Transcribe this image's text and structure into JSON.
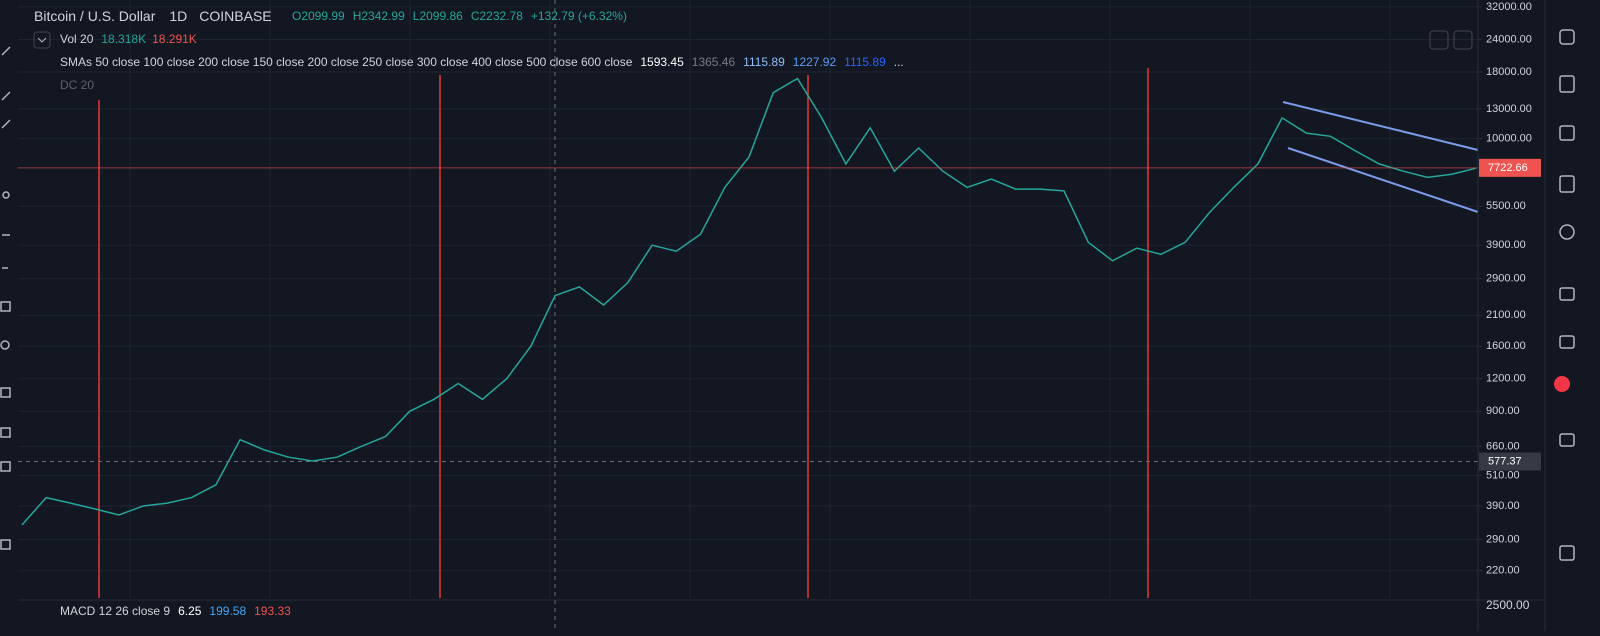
{
  "chart_data": {
    "type": "line",
    "title": "Bitcoin / U.S. Dollar",
    "interval": "1D",
    "exchange": "COINBASE",
    "ohlc": [
      "O2099.99",
      "H2342.99",
      "L2099.86",
      "C2232.78",
      "+132.79 (+6.32%)"
    ],
    "volume_indicator": {
      "label": "Vol 20",
      "values": [
        "18.318K",
        "18.291K"
      ]
    },
    "sma_indicator": {
      "label": "SMAs 50 close 100 close 200 close 150 close 200 close 250 close 300 close 400 close 500 close 600 close",
      "values": [
        "1593.45",
        "1365.46",
        "1115.89",
        "1227.92",
        "1115.89"
      ],
      "more": "..."
    },
    "dc_indicator": "DC 20",
    "macd_indicator": {
      "label": "MACD 12 26 close 9",
      "values": [
        "6.25",
        "199.58",
        "193.33"
      ],
      "axis_label": "2500.00"
    },
    "color": "#26a69a",
    "log_scale": true,
    "grid": true,
    "values": [
      330,
      420,
      400,
      380,
      360,
      390,
      400,
      420,
      470,
      700,
      640,
      600,
      580,
      600,
      660,
      720,
      900,
      1000,
      1150,
      1000,
      1200,
      1600,
      2500,
      2700,
      2300,
      2800,
      3900,
      3700,
      4300,
      6500,
      8500,
      15000,
      17000,
      12000,
      8000,
      11000,
      7500,
      9200,
      7500,
      6500,
      7000,
      6400,
      6400,
      6300,
      4000,
      3400,
      3800,
      3600,
      4000,
      5200,
      6500,
      8000,
      12000,
      10500,
      10200,
      9000,
      8000,
      7500,
      7100,
      7300,
      7700
    ],
    "ylim": [
      170,
      34000
    ],
    "yticks": [
      {
        "value": 32000,
        "label": "32000.00"
      },
      {
        "value": 24000,
        "label": "24000.00"
      },
      {
        "value": 18000,
        "label": "18000.00"
      },
      {
        "value": 13000,
        "label": "13000.00"
      },
      {
        "value": 10000,
        "label": "10000.00"
      },
      {
        "value": 5500,
        "label": "5500.00"
      },
      {
        "value": 3900,
        "label": "3900.00"
      },
      {
        "value": 2900,
        "label": "2900.00"
      },
      {
        "value": 2100,
        "label": "2100.00"
      },
      {
        "value": 1600,
        "label": "1600.00"
      },
      {
        "value": 1200,
        "label": "1200.00"
      },
      {
        "value": 900,
        "label": "900.00"
      },
      {
        "value": 660,
        "label": "660.00"
      },
      {
        "value": 510,
        "label": "510.00"
      },
      {
        "value": 390,
        "label": "390.00"
      },
      {
        "value": 290,
        "label": "290.00"
      },
      {
        "value": 220,
        "label": "220.00"
      }
    ],
    "last_price": 7722.66,
    "crosshair_price": 577.37
  }
}
